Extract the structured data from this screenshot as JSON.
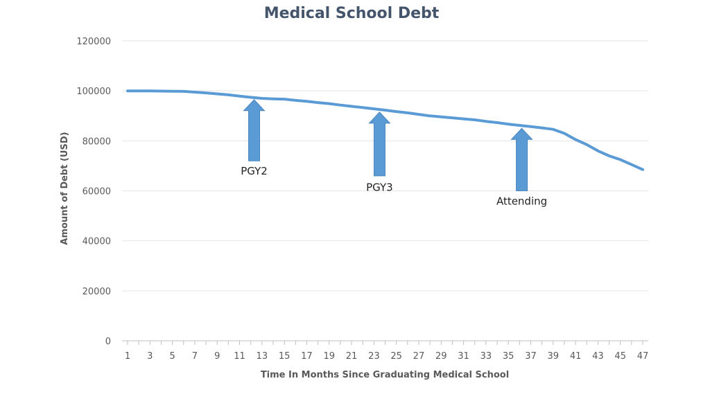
{
  "chart_data": {
    "type": "line",
    "title": "Medical School Debt",
    "xlabel": "Time In Months Since Graduating Medical School",
    "ylabel": "Amount of Debt (USD)",
    "ylim": [
      0,
      120000
    ],
    "yticks": [
      "0",
      "20000",
      "40000",
      "60000",
      "80000",
      "100000",
      "120000"
    ],
    "xlim": [
      1,
      47
    ],
    "xticks": [
      "1",
      "3",
      "5",
      "7",
      "9",
      "11",
      "13",
      "15",
      "17",
      "19",
      "21",
      "23",
      "25",
      "27",
      "29",
      "31",
      "33",
      "35",
      "37",
      "39",
      "41",
      "43",
      "45",
      "47"
    ],
    "grid": true,
    "series": [
      {
        "color": "#5b9bd5",
        "x": [
          1,
          2,
          3,
          4,
          5,
          6,
          7,
          8,
          9,
          10,
          11,
          12,
          13,
          14,
          15,
          16,
          17,
          18,
          19,
          20,
          21,
          22,
          23,
          24,
          25,
          26,
          27,
          28,
          29,
          30,
          31,
          32,
          33,
          34,
          35,
          36,
          37,
          38,
          39,
          40,
          41,
          42,
          43,
          44,
          45,
          46,
          47
        ],
        "values": [
          100000,
          100000,
          99950,
          99900,
          99850,
          99800,
          99500,
          99200,
          98800,
          98400,
          97900,
          97400,
          97000,
          96800,
          96700,
          96200,
          95800,
          95300,
          94900,
          94300,
          93800,
          93300,
          92800,
          92300,
          91700,
          91200,
          90600,
          90000,
          89600,
          89200,
          88800,
          88400,
          87800,
          87300,
          86700,
          86200,
          85700,
          85200,
          84600,
          83000,
          80500,
          78500,
          76000,
          74000,
          72500,
          70500,
          68500
        ]
      }
    ],
    "annotations": [
      {
        "label": "PGY2",
        "x": 12.3,
        "arrow_tip_y": 96500,
        "arrow_base_y": 72000,
        "text_y": 66500
      },
      {
        "label": "PGY3",
        "x": 23.5,
        "arrow_tip_y": 91500,
        "arrow_base_y": 66000,
        "text_y": 60000
      },
      {
        "label": "Attending",
        "x": 36.2,
        "arrow_tip_y": 85000,
        "arrow_base_y": 60000,
        "text_y": 54500
      }
    ],
    "arrow_color": "#5b9bd5"
  }
}
